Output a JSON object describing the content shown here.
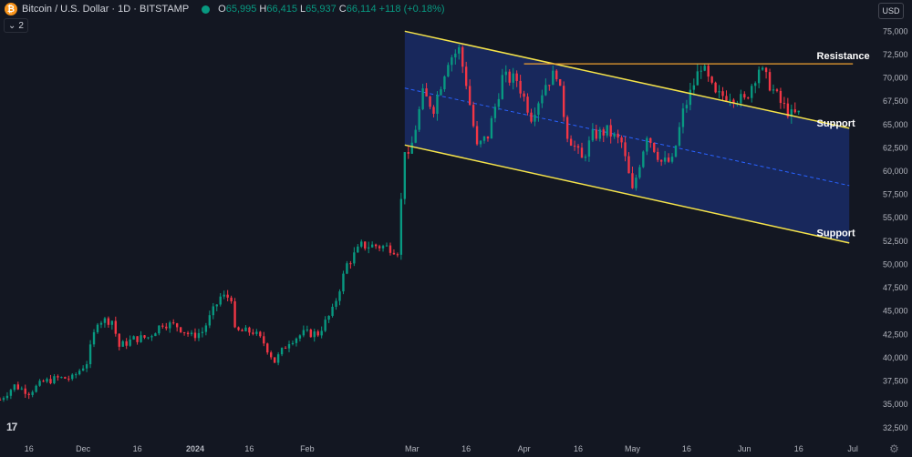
{
  "header": {
    "symbol_title": "Bitcoin / U.S. Dollar · 1D · BITSTAMP",
    "open_label": "O",
    "open": "65,995",
    "high_label": "H",
    "high": "66,415",
    "low_label": "L",
    "low": "65,937",
    "close_label": "C",
    "close": "66,114",
    "change": "+118 (+0.18%)",
    "indicators_count": "2",
    "currency": "USD"
  },
  "icons": {
    "symbol": "bitcoin-icon",
    "status": "market-status-dot",
    "collapse": "chevron-down-icon",
    "settings": "gear-icon",
    "logo": "tradingview-logo"
  },
  "colors": {
    "background": "#131722",
    "up": "#089981",
    "down": "#f23645",
    "channel_fill": "#1a2c66",
    "channel_lines": "#f5e34a",
    "resistance_line": "#f0a030",
    "midline": "#2962ff"
  },
  "chart_data": {
    "type": "candlestick",
    "y_axis": {
      "ticks": [
        75000,
        72500,
        70000,
        67500,
        65000,
        62500,
        60000,
        57500,
        55000,
        52500,
        50000,
        47500,
        45000,
        42500,
        40000,
        37500,
        35000,
        32500
      ],
      "tick_labels": [
        "75,000",
        "72,500",
        "70,000",
        "67,500",
        "65,000",
        "62,500",
        "60,000",
        "57,500",
        "55,000",
        "52,500",
        "50,000",
        "47,500",
        "45,000",
        "42,500",
        "40,000",
        "37,500",
        "35,000",
        "32,500"
      ],
      "ylim": [
        31500,
        76200
      ],
      "position": "right"
    },
    "x_axis": {
      "start": "2023-11-08",
      "end": "2024-07-06",
      "ticks": [
        {
          "date": "2023-11-16",
          "label": "16"
        },
        {
          "date": "2023-12-01",
          "label": "Dec"
        },
        {
          "date": "2023-12-16",
          "label": "16"
        },
        {
          "date": "2024-01-01",
          "label": "2024"
        },
        {
          "date": "2024-01-16",
          "label": "16"
        },
        {
          "date": "2024-02-01",
          "label": "Feb"
        },
        {
          "date": "2024-03-01",
          "label": "Mar"
        },
        {
          "date": "2024-03-16",
          "label": "16"
        },
        {
          "date": "2024-04-01",
          "label": "Apr"
        },
        {
          "date": "2024-04-16",
          "label": "16"
        },
        {
          "date": "2024-05-01",
          "label": "May"
        },
        {
          "date": "2024-05-16",
          "label": "16"
        },
        {
          "date": "2024-06-01",
          "label": "Jun"
        },
        {
          "date": "2024-06-16",
          "label": "16"
        },
        {
          "date": "2024-07-01",
          "label": "Jul"
        }
      ]
    },
    "close_series": [
      [
        "2023-11-08",
        35500
      ],
      [
        "2023-11-12",
        37000
      ],
      [
        "2023-11-16",
        36300
      ],
      [
        "2023-11-20",
        37400
      ],
      [
        "2023-11-24",
        37800
      ],
      [
        "2023-11-28",
        37800
      ],
      [
        "2023-12-02",
        39500
      ],
      [
        "2023-12-05",
        44000
      ],
      [
        "2023-12-09",
        44000
      ],
      [
        "2023-12-11",
        41200
      ],
      [
        "2023-12-15",
        42000
      ],
      [
        "2023-12-19",
        42200
      ],
      [
        "2023-12-23",
        43700
      ],
      [
        "2023-12-27",
        43400
      ],
      [
        "2023-12-31",
        42300
      ],
      [
        "2024-01-03",
        42800
      ],
      [
        "2024-01-08",
        46500
      ],
      [
        "2024-01-11",
        46500
      ],
      [
        "2024-01-12",
        42800
      ],
      [
        "2024-01-17",
        42800
      ],
      [
        "2024-01-20",
        41600
      ],
      [
        "2024-01-23",
        39600
      ],
      [
        "2024-01-27",
        41800
      ],
      [
        "2024-01-31",
        42600
      ],
      [
        "2024-02-04",
        42600
      ],
      [
        "2024-02-08",
        45000
      ],
      [
        "2024-02-12",
        50000
      ],
      [
        "2024-02-16",
        52000
      ],
      [
        "2024-02-20",
        52000
      ],
      [
        "2024-02-24",
        51800
      ],
      [
        "2024-02-26",
        51500
      ],
      [
        "2024-02-27",
        56800
      ],
      [
        "2024-02-28",
        62500
      ],
      [
        "2024-02-29",
        61200
      ],
      [
        "2024-03-04",
        68200
      ],
      [
        "2024-03-07",
        66800
      ],
      [
        "2024-03-11",
        72000
      ],
      [
        "2024-03-14",
        73000
      ],
      [
        "2024-03-16",
        69500
      ],
      [
        "2024-03-19",
        62500
      ],
      [
        "2024-03-22",
        63800
      ],
      [
        "2024-03-26",
        70000
      ],
      [
        "2024-03-30",
        69800
      ],
      [
        "2024-04-03",
        65900
      ],
      [
        "2024-04-07",
        69400
      ],
      [
        "2024-04-10",
        70600
      ],
      [
        "2024-04-13",
        64000
      ],
      [
        "2024-04-17",
        61200
      ],
      [
        "2024-04-20",
        63800
      ],
      [
        "2024-04-24",
        64300
      ],
      [
        "2024-04-28",
        63000
      ],
      [
        "2024-05-01",
        57800
      ],
      [
        "2024-05-05",
        64000
      ],
      [
        "2024-05-09",
        61000
      ],
      [
        "2024-05-12",
        61000
      ],
      [
        "2024-05-15",
        66300
      ],
      [
        "2024-05-20",
        71400
      ],
      [
        "2024-05-24",
        68000
      ],
      [
        "2024-05-28",
        68200
      ],
      [
        "2024-06-01",
        67500
      ],
      [
        "2024-06-05",
        71100
      ],
      [
        "2024-06-08",
        69300
      ],
      [
        "2024-06-11",
        67300
      ],
      [
        "2024-06-14",
        66000
      ],
      [
        "2024-06-16",
        66100
      ]
    ],
    "annotations": [
      {
        "type": "channel",
        "upper": [
          [
            "2024-02-28",
            75000
          ],
          [
            "2024-06-30",
            64600
          ]
        ],
        "lower": [
          [
            "2024-02-28",
            62800
          ],
          [
            "2024-06-30",
            52300
          ]
        ],
        "midline": true
      },
      {
        "type": "horizontal_segment",
        "label": "Resistance",
        "from": "2024-04-01",
        "to": "2024-07-01",
        "y": 71500
      },
      {
        "type": "label",
        "text": "Resistance",
        "date": "2024-06-21",
        "y": 72000
      },
      {
        "type": "label",
        "text": "Support",
        "date": "2024-06-21",
        "y": 64800
      },
      {
        "type": "label",
        "text": "Support",
        "date": "2024-06-21",
        "y": 53000
      }
    ],
    "grid": false
  }
}
